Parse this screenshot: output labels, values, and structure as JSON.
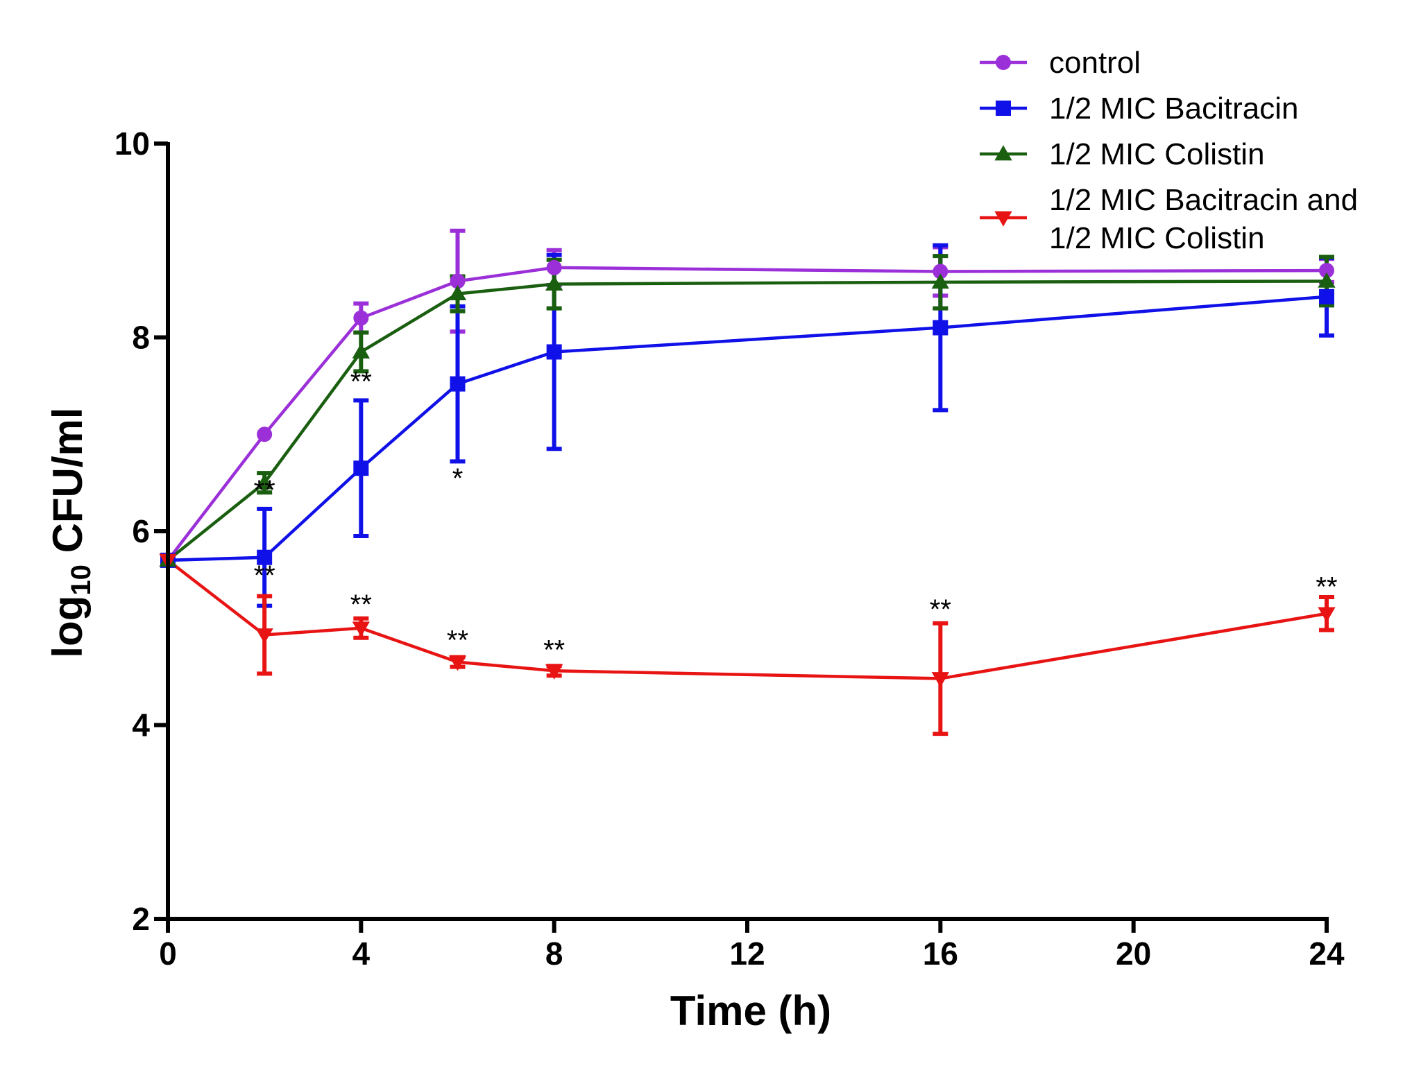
{
  "chart_data": {
    "type": "line",
    "title": "",
    "xlabel": "Time (h)",
    "ylabel": {
      "prefix": "log",
      "subscript": "10",
      "suffix": " CFU/ml"
    },
    "xlim": [
      0,
      24
    ],
    "ylim": [
      2,
      10
    ],
    "xticks": [
      0,
      4,
      8,
      12,
      16,
      20,
      24
    ],
    "yticks": [
      2,
      4,
      6,
      8,
      10
    ],
    "x": [
      0,
      2,
      4,
      6,
      8,
      16,
      24
    ],
    "legend_position": "top-right",
    "grid": false,
    "series": [
      {
        "name": "control",
        "legend_lines": [
          "control"
        ],
        "color": "#9b30d9",
        "marker": "circle",
        "values": [
          5.7,
          7.0,
          8.2,
          8.58,
          8.72,
          8.68,
          8.69
        ],
        "errors": [
          0,
          0,
          0.15,
          0.52,
          0.18,
          0.25,
          0.12
        ]
      },
      {
        "name": "1/2 MIC Bacitracin",
        "legend_lines": [
          "1/2 MIC Bacitracin"
        ],
        "color": "#1010e8",
        "marker": "square",
        "values": [
          5.7,
          5.73,
          6.65,
          7.52,
          7.85,
          8.1,
          8.42
        ],
        "errors": [
          0,
          0.5,
          0.7,
          0.8,
          1.0,
          0.85,
          0.4
        ]
      },
      {
        "name": "1/2 MIC Colistin",
        "legend_lines": [
          "1/2 MIC Colistin"
        ],
        "color": "#1a5e10",
        "marker": "triangle-up",
        "values": [
          5.7,
          6.5,
          7.85,
          8.45,
          8.55,
          8.57,
          8.58
        ],
        "errors": [
          0,
          0.1,
          0.2,
          0.18,
          0.25,
          0.27,
          0.25
        ]
      },
      {
        "name": "1/2 MIC Bacitracin and 1/2 MIC Colistin",
        "legend_lines": [
          "1/2 MIC Bacitracin and",
          "1/2 MIC Colistin"
        ],
        "color": "#e81414",
        "marker": "triangle-down",
        "values": [
          5.7,
          4.93,
          5.0,
          4.65,
          4.56,
          4.48,
          5.15
        ],
        "errors": [
          0,
          0.4,
          0.1,
          0.05,
          0.05,
          0.57,
          0.17
        ]
      }
    ],
    "annotations": [
      {
        "text": "**",
        "x": 2,
        "y": 6.33
      },
      {
        "text": "**",
        "x": 2,
        "y": 5.45
      },
      {
        "text": "**",
        "x": 4,
        "y": 7.45
      },
      {
        "text": "**",
        "x": 4,
        "y": 5.15
      },
      {
        "text": "*",
        "x": 6,
        "y": 6.45
      },
      {
        "text": "**",
        "x": 6,
        "y": 4.78
      },
      {
        "text": "**",
        "x": 8,
        "y": 4.68
      },
      {
        "text": "**",
        "x": 16,
        "y": 5.1
      },
      {
        "text": "**",
        "x": 24,
        "y": 5.33
      }
    ]
  }
}
